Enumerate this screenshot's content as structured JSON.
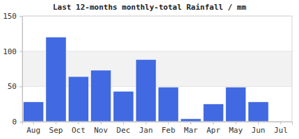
{
  "chart_data": {
    "type": "bar",
    "title": "Last 12-months monthly-total Rainfall / mm",
    "categories": [
      "Aug",
      "Sep",
      "Oct",
      "Nov",
      "Dec",
      "Jan",
      "Feb",
      "Mar",
      "Apr",
      "May",
      "Jun",
      "Jul"
    ],
    "values": [
      28,
      120,
      64,
      73,
      43,
      88,
      49,
      4,
      25,
      49,
      28,
      0
    ],
    "color": "#4169e1",
    "ylim": [
      0,
      150
    ],
    "yticks": [
      0,
      50,
      100,
      150
    ],
    "grid": true
  }
}
